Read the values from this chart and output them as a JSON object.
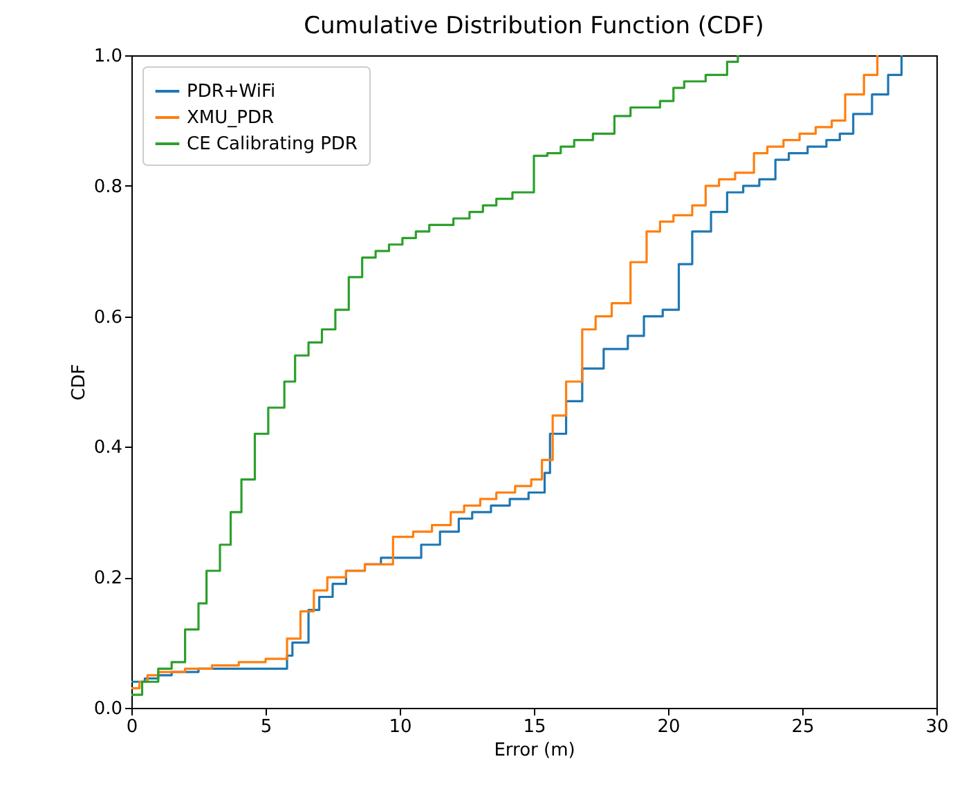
{
  "chart_data": {
    "type": "step",
    "title": "Cumulative Distribution Function (CDF)",
    "xlabel": "Error (m)",
    "ylabel": "CDF",
    "xlim": [
      0,
      30
    ],
    "xticks": [
      0,
      5,
      10,
      15,
      20,
      25,
      30
    ],
    "ylim": [
      0,
      1
    ],
    "yticks": [
      {
        "value": 0,
        "label": "0.0"
      },
      {
        "value": 0.2,
        "label": "0.2"
      },
      {
        "value": 0.4,
        "label": "0.4"
      },
      {
        "value": 0.6,
        "label": "0.6"
      },
      {
        "value": 0.8,
        "label": "0.8"
      },
      {
        "value": 1,
        "label": "1.0"
      }
    ],
    "legend": "top left",
    "grid": false,
    "series": [
      {
        "name": "PDR+WiFi",
        "color": "#1f77b4",
        "x": [
          0,
          0.5,
          1,
          1.5,
          2.5,
          5.8,
          6.0,
          6.6,
          7.0,
          7.5,
          8.0,
          8.7,
          9.3,
          10.8,
          11.5,
          12.2,
          12.7,
          13.4,
          14.1,
          14.8,
          15.4,
          15.6,
          16.2,
          16.8,
          17.6,
          18.5,
          19.1,
          19.8,
          20.4,
          20.9,
          21.6,
          22.2,
          22.8,
          23.4,
          24.0,
          24.5,
          25.2,
          25.9,
          26.4,
          26.9,
          27.6,
          28.2,
          28.7
        ],
        "values": [
          0.04,
          0.045,
          0.05,
          0.055,
          0.06,
          0.08,
          0.1,
          0.15,
          0.17,
          0.19,
          0.21,
          0.22,
          0.23,
          0.25,
          0.27,
          0.29,
          0.3,
          0.31,
          0.32,
          0.33,
          0.36,
          0.42,
          0.47,
          0.52,
          0.55,
          0.57,
          0.6,
          0.61,
          0.68,
          0.73,
          0.76,
          0.79,
          0.8,
          0.81,
          0.84,
          0.85,
          0.86,
          0.87,
          0.88,
          0.91,
          0.94,
          0.97,
          1.0
        ]
      },
      {
        "name": "XMU_PDR",
        "color": "#ff7f0e",
        "x": [
          0,
          0.3,
          0.6,
          1,
          2,
          3,
          4,
          5,
          5.8,
          6.3,
          6.8,
          7.3,
          8.0,
          8.7,
          9.75,
          10.5,
          11.2,
          11.9,
          12.4,
          13.0,
          13.6,
          14.3,
          14.9,
          15.3,
          15.7,
          16.2,
          16.8,
          17.3,
          17.9,
          18.6,
          19.2,
          19.7,
          20.2,
          20.9,
          21.4,
          21.9,
          22.5,
          23.2,
          23.7,
          24.3,
          24.9,
          25.5,
          26.1,
          26.6,
          27.3,
          27.8
        ],
        "values": [
          0.03,
          0.04,
          0.05,
          0.055,
          0.06,
          0.065,
          0.07,
          0.075,
          0.106,
          0.148,
          0.18,
          0.2,
          0.21,
          0.22,
          0.262,
          0.27,
          0.28,
          0.3,
          0.31,
          0.32,
          0.33,
          0.34,
          0.35,
          0.38,
          0.448,
          0.5,
          0.58,
          0.6,
          0.62,
          0.683,
          0.73,
          0.745,
          0.755,
          0.77,
          0.8,
          0.81,
          0.82,
          0.85,
          0.86,
          0.87,
          0.88,
          0.89,
          0.9,
          0.94,
          0.97,
          1.0
        ]
      },
      {
        "name": "CE Calibrating PDR",
        "color": "#2ca02c",
        "x": [
          0,
          0.4,
          1,
          1.5,
          2,
          2.5,
          2.8,
          3.3,
          3.7,
          4.1,
          4.6,
          5.1,
          5.7,
          6.1,
          6.6,
          7.1,
          7.6,
          8.1,
          8.6,
          9.1,
          9.6,
          10.1,
          10.6,
          11.1,
          12.0,
          12.6,
          13.1,
          13.6,
          14.2,
          15.0,
          15.5,
          16.0,
          16.5,
          17.2,
          18.0,
          18.6,
          19.7,
          20.2,
          20.6,
          21.4,
          22.2,
          22.6
        ],
        "values": [
          0.02,
          0.04,
          0.06,
          0.07,
          0.12,
          0.16,
          0.21,
          0.25,
          0.3,
          0.35,
          0.42,
          0.46,
          0.5,
          0.54,
          0.56,
          0.58,
          0.61,
          0.66,
          0.69,
          0.7,
          0.71,
          0.72,
          0.73,
          0.74,
          0.75,
          0.76,
          0.77,
          0.78,
          0.79,
          0.846,
          0.85,
          0.86,
          0.87,
          0.88,
          0.907,
          0.92,
          0.93,
          0.95,
          0.96,
          0.97,
          0.99,
          1.0
        ]
      }
    ]
  }
}
